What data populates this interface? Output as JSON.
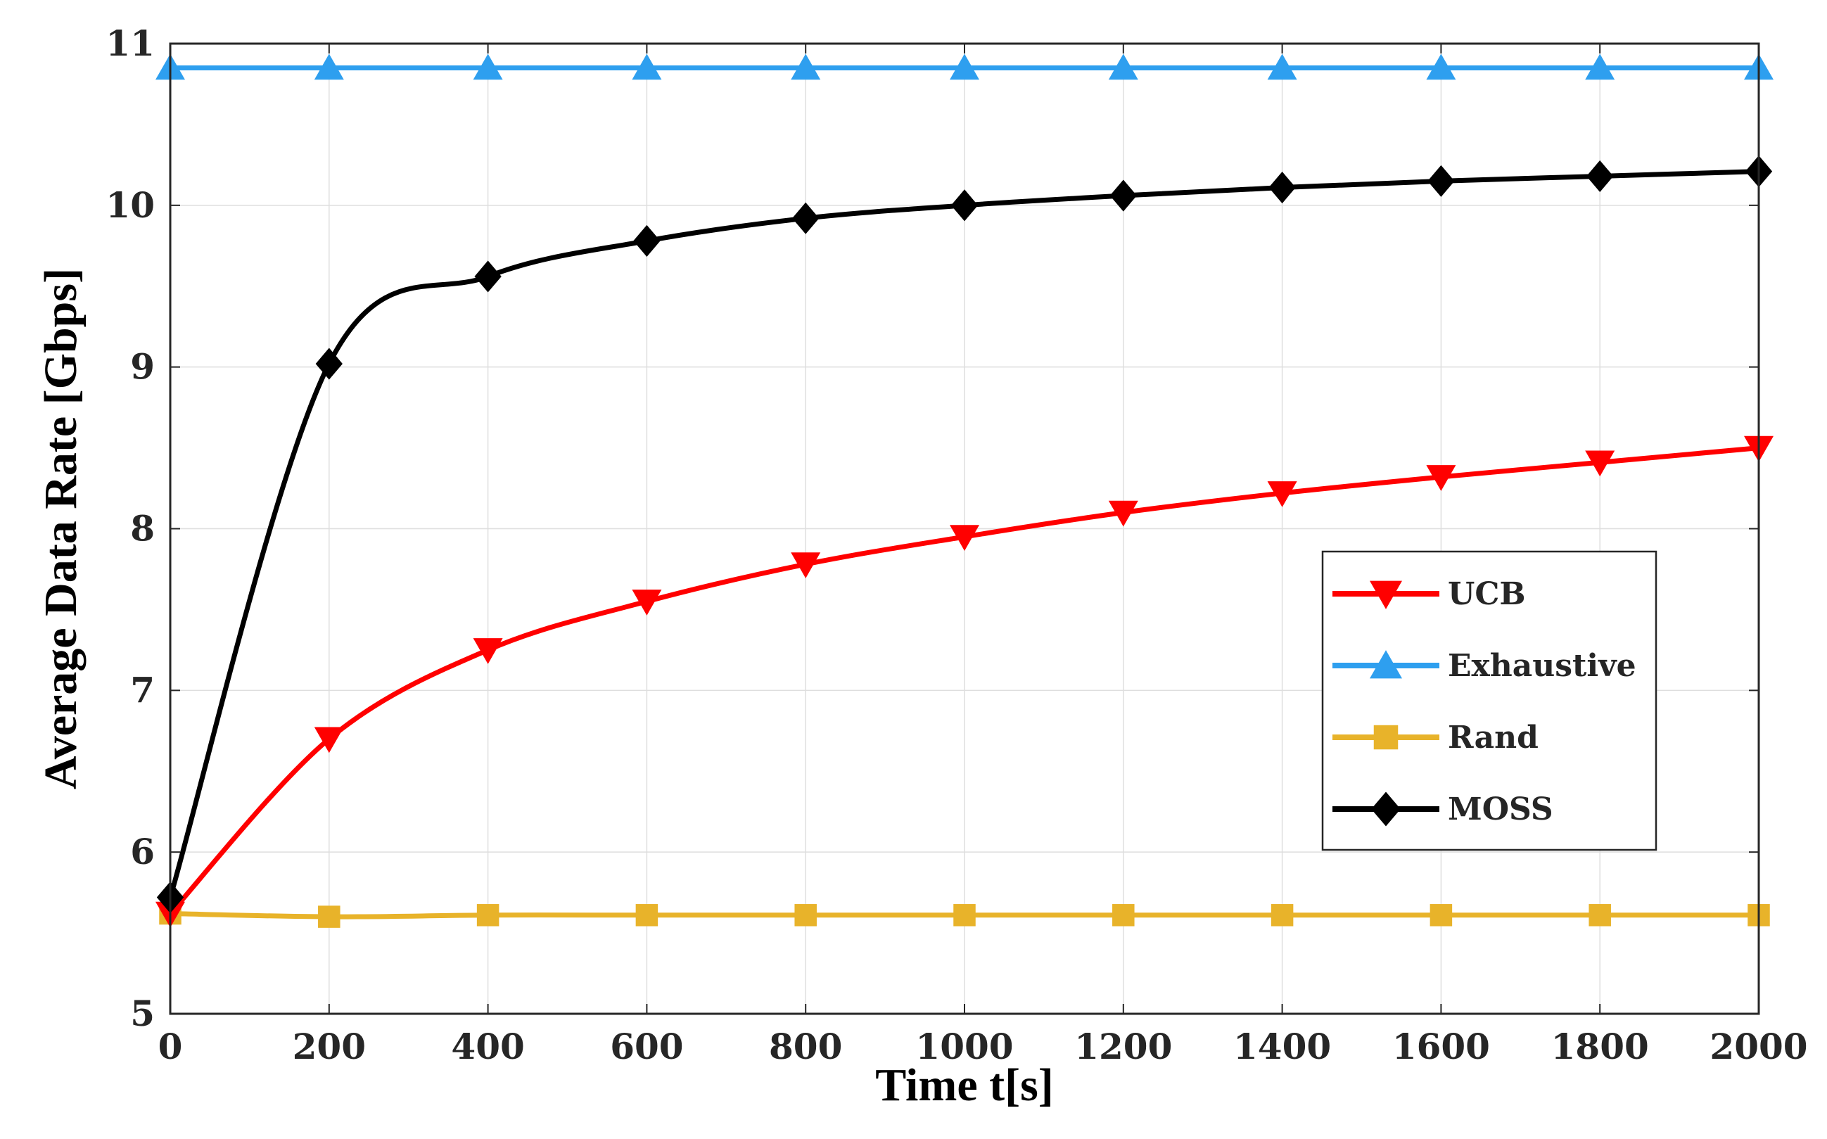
{
  "chart_data": {
    "type": "line",
    "title": "",
    "xlabel": "Time t[s]",
    "ylabel": "Average Data Rate [Gbps]",
    "xlim": [
      0,
      2000
    ],
    "ylim": [
      5,
      11
    ],
    "xticks": [
      0,
      200,
      400,
      600,
      800,
      1000,
      1200,
      1400,
      1600,
      1800,
      2000
    ],
    "yticks": [
      5,
      6,
      7,
      8,
      9,
      10,
      11
    ],
    "grid": true,
    "legend_position": "center-right",
    "x": [
      0,
      200,
      400,
      600,
      800,
      1000,
      1200,
      1400,
      1600,
      1800,
      2000
    ],
    "series": [
      {
        "name": "UCB",
        "color": "#ff0000",
        "marker": "triangle-down",
        "values": [
          5.62,
          6.7,
          7.25,
          7.55,
          7.78,
          7.95,
          8.1,
          8.22,
          8.32,
          8.41,
          8.5
        ]
      },
      {
        "name": "Exhaustive",
        "color": "#2e9fef",
        "marker": "triangle-up",
        "values": [
          10.85,
          10.85,
          10.85,
          10.85,
          10.85,
          10.85,
          10.85,
          10.85,
          10.85,
          10.85,
          10.85
        ]
      },
      {
        "name": "Rand",
        "color": "#e8b32a",
        "marker": "square",
        "values": [
          5.62,
          5.6,
          5.61,
          5.61,
          5.61,
          5.61,
          5.61,
          5.61,
          5.61,
          5.61,
          5.61
        ]
      },
      {
        "name": "MOSS",
        "color": "#000000",
        "marker": "diamond",
        "values": [
          5.72,
          9.02,
          9.56,
          9.78,
          9.92,
          10.0,
          10.06,
          10.11,
          10.15,
          10.18,
          10.21
        ]
      }
    ]
  }
}
